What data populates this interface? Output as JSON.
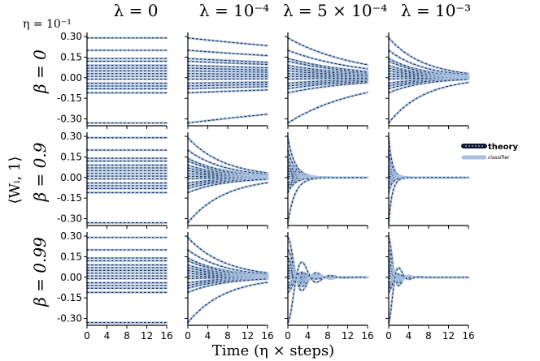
{
  "chart_data": {
    "type": "line",
    "layout": "3x4 grid of subplots",
    "eta_label": "η = 10⁻¹",
    "column_titles": [
      "λ = 0",
      "λ = 10⁻⁴",
      "λ = 5 × 10⁻⁴",
      "λ = 10⁻³"
    ],
    "lambda_values": [
      0,
      0.0001,
      0.0005,
      0.001
    ],
    "row_labels": [
      "β = 0",
      "β = 0.9",
      "β = 0.99"
    ],
    "beta_values": [
      0,
      0.9,
      0.99
    ],
    "ylabel": "⟨Wᵢ, 1⟩",
    "xlabel": "Time (η × steps)",
    "xlim": [
      0,
      16
    ],
    "ylim": [
      -0.35,
      0.33
    ],
    "xticks": [
      0,
      4,
      8,
      12,
      16
    ],
    "xtick_labels": [
      "0",
      "4",
      "8",
      "12",
      "16"
    ],
    "yticks": [
      0.3,
      0.15,
      0.0,
      -0.15,
      -0.3
    ],
    "ytick_labels": [
      "0.30",
      "0.15",
      "0.00",
      "-0.15",
      "-0.30"
    ],
    "initial_values": [
      0.29,
      0.2,
      0.14,
      0.12,
      0.09,
      0.07,
      0.05,
      0.03,
      0.01,
      -0.01,
      -0.04,
      -0.06,
      -0.08,
      -0.11,
      -0.33
    ],
    "series": [
      {
        "name": "theory",
        "style": "dark dotted"
      },
      {
        "name": "classifier",
        "style": "light blue solid"
      }
    ],
    "legend": {
      "position": "right",
      "entries": [
        "theory",
        "classifier"
      ]
    },
    "colors": {
      "theory": "#0d1a33",
      "classifier": "#a7c0e3"
    }
  }
}
